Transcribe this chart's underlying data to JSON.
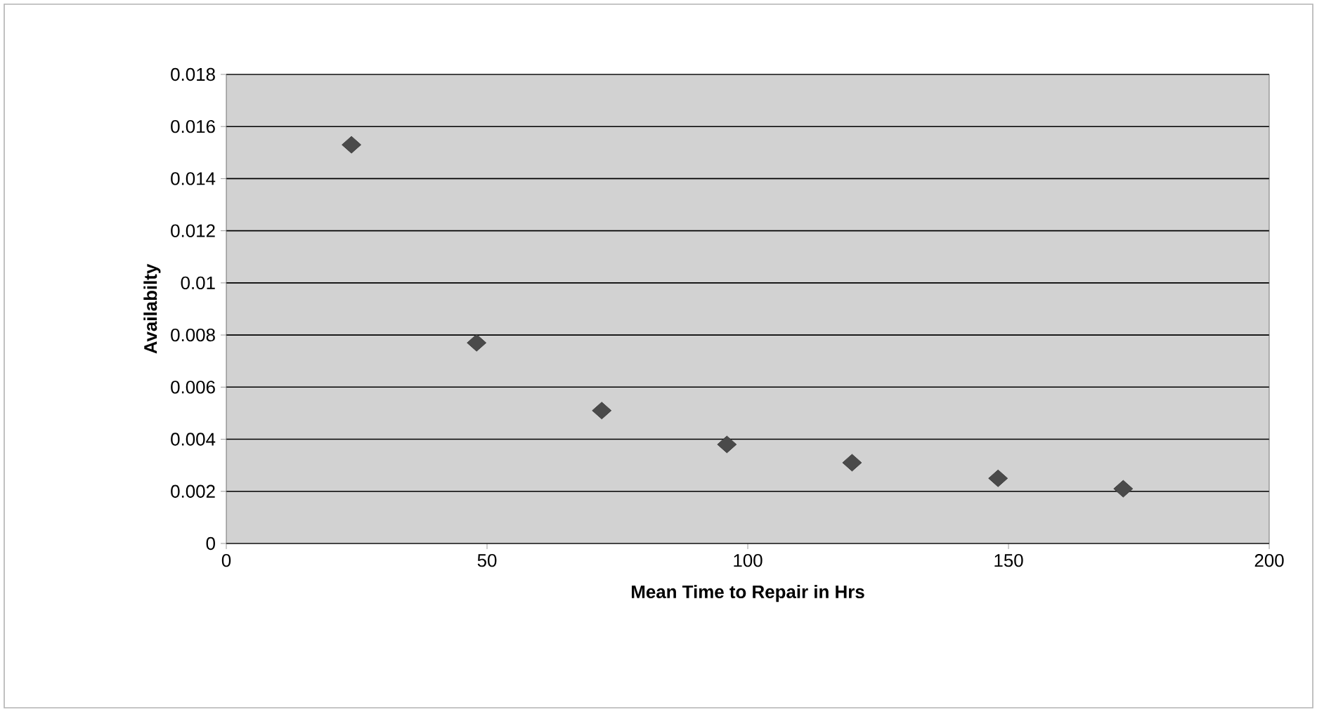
{
  "chart_data": {
    "type": "scatter",
    "xlabel": "Mean Time to Repair in Hrs",
    "ylabel": "Availabilty",
    "x": [
      24,
      48,
      72,
      96,
      120,
      148,
      172
    ],
    "values": [
      0.0153,
      0.0077,
      0.0051,
      0.0038,
      0.0031,
      0.0025,
      0.0021
    ],
    "color": "#4a4a4a",
    "marker": "diamond",
    "xlim": [
      0,
      200
    ],
    "xticks": [
      0,
      50,
      100,
      150,
      200
    ],
    "ylim": [
      0,
      0.018
    ],
    "yticks": [
      {
        "value": 0,
        "label": "0"
      },
      {
        "value": 0.002,
        "label": "0.002"
      },
      {
        "value": 0.004,
        "label": "0.004"
      },
      {
        "value": 0.006,
        "label": "0.006"
      },
      {
        "value": 0.008,
        "label": "0.008"
      },
      {
        "value": 0.01,
        "label": "0.01"
      },
      {
        "value": 0.012,
        "label": "0.012"
      },
      {
        "value": 0.014,
        "label": "0.014"
      },
      {
        "value": 0.016,
        "label": "0.016"
      },
      {
        "value": 0.018,
        "label": "0.018"
      }
    ],
    "grid": "y"
  }
}
